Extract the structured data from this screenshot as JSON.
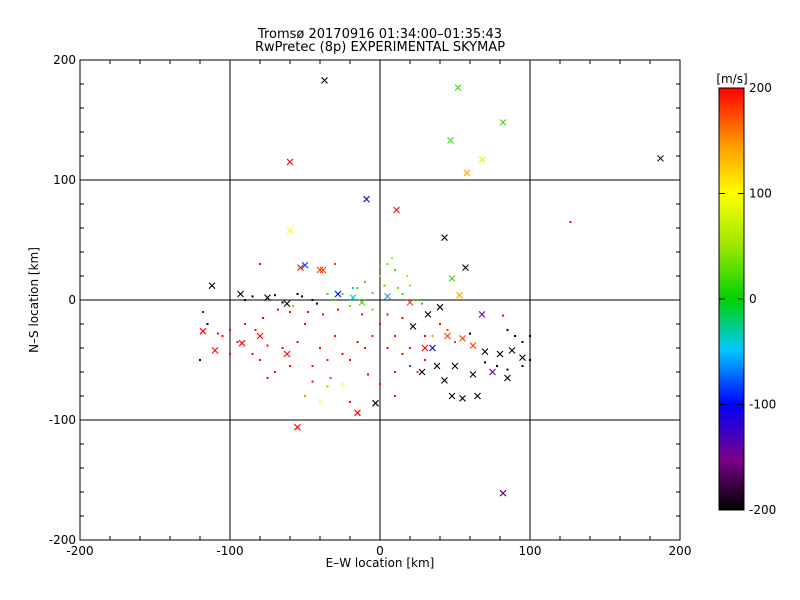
{
  "chart_data": {
    "type": "scatter",
    "title": "Tromsø 20170916 01:34:00–01:35:43",
    "subtitle": "RwPretec (8p) EXPERIMENTAL SKYMAP",
    "xlabel": "E–W location [km]",
    "ylabel": "N–S location [km]",
    "xlim": [
      -200,
      200
    ],
    "ylim": [
      -200,
      200
    ],
    "x_ticks": [
      -200,
      -100,
      0,
      100,
      200
    ],
    "y_ticks": [
      -200,
      -100,
      0,
      100,
      200
    ],
    "grid": true,
    "colorbar": {
      "label": "[m/s]",
      "range": [
        -200,
        200
      ],
      "ticks": [
        -200,
        -100,
        0,
        100,
        200
      ],
      "colormap": "rainbow (black → purple → blue → cyan → green → yellow → orange → red)"
    },
    "series": [
      {
        "marker": "x",
        "points": [
          [
            -37,
            183,
            null
          ],
          [
            52,
            177,
            20
          ],
          [
            82,
            148,
            20
          ],
          [
            47,
            133,
            20
          ],
          [
            68,
            117,
            80
          ],
          [
            58,
            106,
            140
          ],
          [
            -60,
            115,
            200
          ],
          [
            187,
            118,
            -180
          ],
          [
            -9,
            84,
            -120
          ],
          [
            11,
            75,
            200
          ],
          [
            -60,
            58,
            100
          ],
          [
            43,
            52,
            null
          ],
          [
            -50,
            29,
            -80
          ],
          [
            -53,
            27,
            200
          ],
          [
            -40,
            25,
            180
          ],
          [
            -38,
            25,
            180
          ],
          [
            57,
            27,
            null
          ],
          [
            48,
            18,
            20
          ],
          [
            -112,
            12,
            null
          ],
          [
            53,
            4,
            140
          ],
          [
            68,
            -12,
            -140
          ],
          [
            -93,
            5,
            null
          ],
          [
            -75,
            2,
            null
          ],
          [
            -62,
            -3,
            null
          ],
          [
            -28,
            5,
            -100
          ],
          [
            -18,
            2,
            -40
          ],
          [
            -12,
            -2,
            20
          ],
          [
            5,
            3,
            -60
          ],
          [
            20,
            -2,
            180
          ],
          [
            40,
            -6,
            null
          ],
          [
            32,
            -12,
            null
          ],
          [
            22,
            -22,
            null
          ],
          [
            45,
            -30,
            180
          ],
          [
            55,
            -32,
            180
          ],
          [
            62,
            -38,
            180
          ],
          [
            70,
            -43,
            null
          ],
          [
            80,
            -45,
            null
          ],
          [
            88,
            -42,
            null
          ],
          [
            95,
            -48,
            null
          ],
          [
            30,
            -40,
            200
          ],
          [
            38,
            -55,
            null
          ],
          [
            28,
            -60,
            null
          ],
          [
            50,
            -55,
            null
          ],
          [
            62,
            -62,
            null
          ],
          [
            75,
            -60,
            -140
          ],
          [
            85,
            -65,
            null
          ],
          [
            43,
            -67,
            null
          ],
          [
            48,
            -80,
            null
          ],
          [
            55,
            -82,
            null
          ],
          [
            65,
            -80,
            null
          ],
          [
            -3,
            -86,
            null
          ],
          [
            -15,
            -94,
            200
          ],
          [
            -55,
            -106,
            200
          ],
          [
            82,
            -161,
            -160
          ],
          [
            -118,
            -26,
            200
          ],
          [
            -92,
            -36,
            200
          ],
          [
            -62,
            -45,
            200
          ],
          [
            -110,
            -42,
            200
          ],
          [
            35,
            -40,
            -100
          ],
          [
            -80,
            -30,
            200
          ]
        ]
      },
      {
        "marker": "dot",
        "points": [
          [
            -120,
            -50,
            null
          ],
          [
            -115,
            -20,
            null
          ],
          [
            -118,
            -10,
            -140
          ],
          [
            -80,
            30,
            200
          ],
          [
            -30,
            30,
            180
          ],
          [
            -55,
            5,
            null
          ],
          [
            -45,
            0,
            null
          ],
          [
            -42,
            -3,
            null
          ],
          [
            -35,
            5,
            20
          ],
          [
            -30,
            0,
            20
          ],
          [
            -25,
            5,
            20
          ],
          [
            -20,
            -5,
            40
          ],
          [
            -15,
            10,
            20
          ],
          [
            -10,
            15,
            20
          ],
          [
            0,
            20,
            40
          ],
          [
            5,
            30,
            40
          ],
          [
            8,
            35,
            60
          ],
          [
            10,
            25,
            20
          ],
          [
            12,
            10,
            40
          ],
          [
            15,
            5,
            20
          ],
          [
            18,
            20,
            60
          ],
          [
            20,
            12,
            40
          ],
          [
            3,
            12,
            20
          ],
          [
            0,
            28,
            20
          ],
          [
            -5,
            6,
            20
          ],
          [
            -18,
            10,
            -40
          ],
          [
            25,
            0,
            20
          ],
          [
            28,
            -3,
            -20
          ],
          [
            -60,
            -55,
            200
          ],
          [
            -40,
            -40,
            200
          ],
          [
            -30,
            -30,
            200
          ],
          [
            -20,
            -50,
            200
          ],
          [
            -10,
            -40,
            200
          ],
          [
            0,
            -20,
            200
          ],
          [
            10,
            -30,
            200
          ],
          [
            20,
            -40,
            200
          ],
          [
            30,
            -50,
            200
          ],
          [
            40,
            -20,
            200
          ],
          [
            -50,
            -80,
            150
          ],
          [
            -40,
            -85,
            100
          ],
          [
            -90,
            -20,
            200
          ],
          [
            -100,
            -25,
            200
          ],
          [
            -80,
            -50,
            200
          ],
          [
            -70,
            -60,
            200
          ],
          [
            -60,
            -10,
            200
          ],
          [
            -50,
            -20,
            200
          ],
          [
            100,
            -30,
            null
          ],
          [
            95,
            -35,
            null
          ],
          [
            90,
            -30,
            null
          ],
          [
            85,
            -25,
            null
          ],
          [
            100,
            -50,
            null
          ],
          [
            95,
            -55,
            null
          ],
          [
            85,
            -58,
            null
          ],
          [
            78,
            -55,
            null
          ],
          [
            70,
            -52,
            null
          ],
          [
            -20,
            -85,
            200
          ],
          [
            -35,
            -72,
            150
          ],
          [
            0,
            -70,
            200
          ],
          [
            10,
            -80,
            200
          ],
          [
            127,
            65,
            200
          ],
          [
            82,
            -13,
            200
          ],
          [
            20,
            -55,
            -80
          ],
          [
            -25,
            -70,
            100
          ],
          [
            -90,
            0,
            null
          ],
          [
            -85,
            3,
            null
          ],
          [
            -70,
            4,
            null
          ],
          [
            -65,
            -2,
            null
          ],
          [
            -52,
            3,
            null
          ],
          [
            50,
            -35,
            180
          ],
          [
            45,
            -25,
            180
          ],
          [
            60,
            -28,
            null
          ],
          [
            30,
            -30,
            200
          ],
          [
            15,
            -15,
            200
          ],
          [
            5,
            -12,
            200
          ],
          [
            -5,
            -8,
            150
          ],
          [
            -12,
            -12,
            200
          ],
          [
            -28,
            -8,
            200
          ],
          [
            -38,
            -12,
            200
          ],
          [
            -48,
            -10,
            200
          ],
          [
            -58,
            -5,
            150
          ],
          [
            -68,
            -8,
            200
          ],
          [
            -78,
            -15,
            200
          ],
          [
            -95,
            -35,
            200
          ],
          [
            -105,
            -30,
            200
          ],
          [
            -85,
            -45,
            200
          ],
          [
            -75,
            -38,
            200
          ],
          [
            -55,
            -35,
            200
          ],
          [
            -45,
            -55,
            200
          ],
          [
            -35,
            -50,
            200
          ],
          [
            -25,
            -45,
            200
          ],
          [
            -15,
            -35,
            200
          ],
          [
            -5,
            -30,
            200
          ],
          [
            5,
            -40,
            200
          ],
          [
            15,
            -45,
            200
          ],
          [
            25,
            -60,
            180
          ],
          [
            35,
            -30,
            150
          ],
          [
            -33,
            -65,
            180
          ],
          [
            -45,
            -68,
            200
          ],
          [
            -65,
            -40,
            200
          ],
          [
            -75,
            -65,
            200
          ],
          [
            -83,
            -25,
            200
          ],
          [
            -100,
            -45,
            200
          ],
          [
            -108,
            -28,
            200
          ],
          [
            10,
            -60,
            200
          ],
          [
            -8,
            -62,
            200
          ]
        ]
      }
    ]
  }
}
